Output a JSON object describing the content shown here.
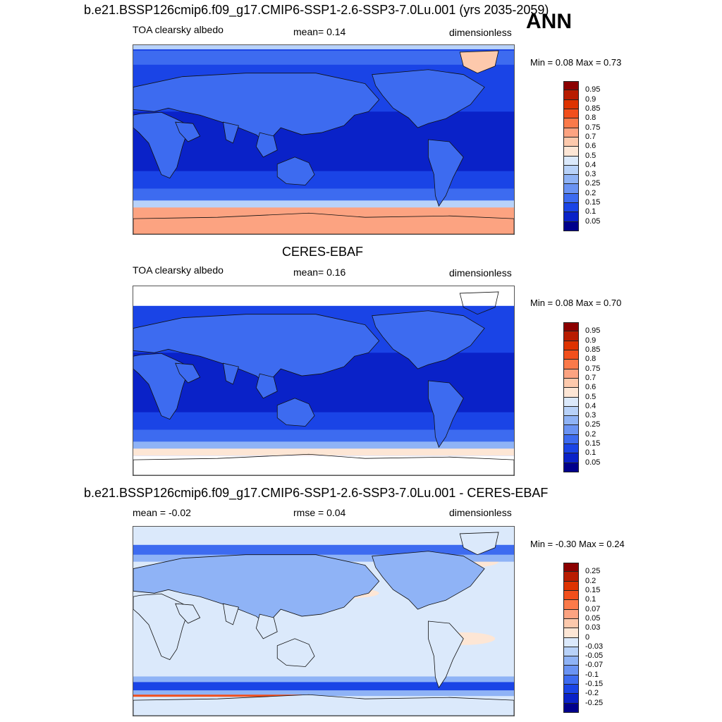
{
  "page_label": "ANN",
  "panels": [
    {
      "title": "b.e21.BSSP126cmip6.f09_g17.CMIP6-SSP1-2.6-SSP3-7.0Lu.001 (yrs 2035-2059)",
      "left_label": "TOA clearsky albedo",
      "center_label": "mean=   0.14",
      "right_label": "dimensionless",
      "minmax": "Min =   0.08 Max =   0.73",
      "kind": "albedo",
      "variant": "model"
    },
    {
      "title": "CERES-EBAF",
      "left_label": "TOA clearsky albedo",
      "center_label": "mean=   0.16",
      "right_label": "dimensionless",
      "minmax": "Min =   0.08 Max =   0.70",
      "kind": "albedo",
      "variant": "obs"
    },
    {
      "title": "b.e21.BSSP126cmip6.f09_g17.CMIP6-SSP1-2.6-SSP3-7.0Lu.001 - CERES-EBAF",
      "left_label": "mean =  -0.02",
      "center_label": "rmse =   0.04",
      "right_label": "dimensionless",
      "minmax": "Min =  -0.30 Max =   0.24",
      "kind": "diff",
      "variant": "diff"
    }
  ],
  "colorbars": {
    "albedo": {
      "labels": [
        "0.95",
        "0.9",
        "0.85",
        "0.8",
        "0.75",
        "0.7",
        "0.6",
        "0.5",
        "0.4",
        "0.3",
        "0.25",
        "0.2",
        "0.15",
        "0.1",
        "0.05"
      ],
      "colors": [
        "#8c0000",
        "#b81c00",
        "#de3300",
        "#f24f1c",
        "#fb7a4a",
        "#fca381",
        "#fdc9ac",
        "#fde6d5",
        "#dbe9fb",
        "#b8d2f9",
        "#8fb3f6",
        "#6a93f3",
        "#3d6bf0",
        "#1a44e6",
        "#0a22c8",
        "#00008c"
      ]
    },
    "diff": {
      "labels": [
        "0.25",
        "0.2",
        "0.15",
        "0.1",
        "0.07",
        "0.05",
        "0.03",
        "0",
        "-0.03",
        "-0.05",
        "-0.07",
        "-0.1",
        "-0.15",
        "-0.2",
        "-0.25"
      ],
      "colors": [
        "#8c0000",
        "#b81c00",
        "#de3300",
        "#f24f1c",
        "#fb7a4a",
        "#fca381",
        "#fdc9ac",
        "#fde6d5",
        "#dbe9fb",
        "#b8d2f9",
        "#8fb3f6",
        "#6a93f3",
        "#3d6bf0",
        "#1a44e6",
        "#0a22c8",
        "#00008c"
      ]
    }
  }
}
